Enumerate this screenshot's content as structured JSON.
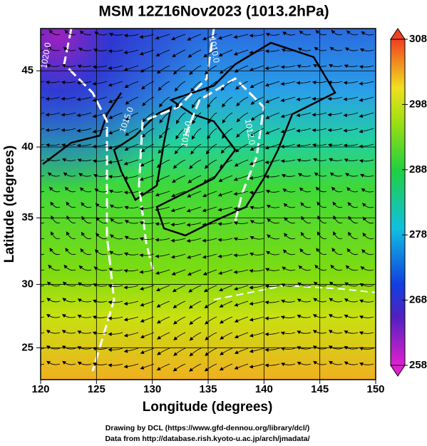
{
  "chart_data": {
    "type": "map",
    "title": "MSM 12Z16Nov2023 (1013.2hPa)",
    "xlabel": "Longitude (degrees)",
    "ylabel": "Latitude  (degrees)",
    "xlim": [
      120,
      150
    ],
    "ylim": [
      22.4,
      47.6
    ],
    "xticks": [
      120,
      125,
      130,
      135,
      140,
      145,
      150
    ],
    "yticks": [
      25,
      30,
      35,
      40,
      45
    ],
    "colorbar": {
      "lim": [
        258,
        308
      ],
      "ticks": [
        258,
        268,
        278,
        288,
        298,
        308
      ]
    },
    "contour_labels": [
      "1020.0",
      "1015.0",
      "1010.0",
      "1012.0",
      "1012.0"
    ],
    "credits": [
      "Drawing by DCL (https://www.gfd-dennou.org/library/dcl/)",
      "Data from http://database.rish.kyoto-u.ac.jp/arch/jmadata/"
    ]
  }
}
